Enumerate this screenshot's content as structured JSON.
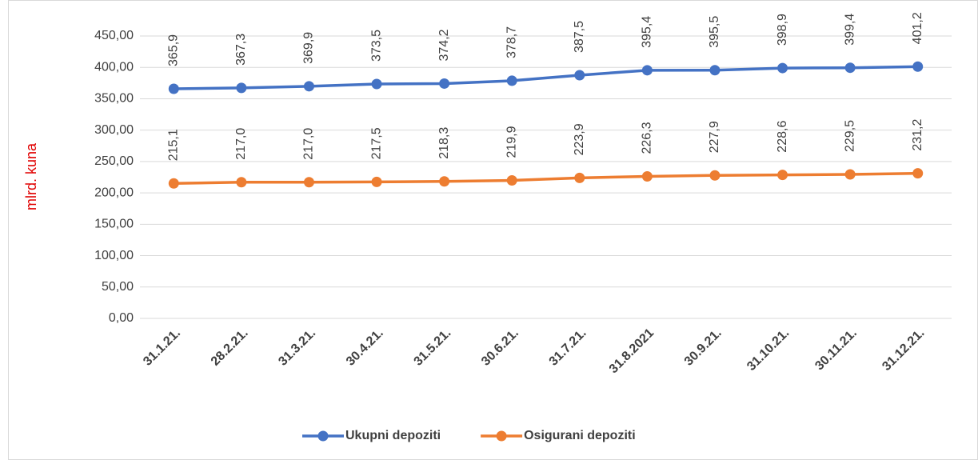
{
  "chart_data": {
    "type": "line",
    "ylabel": "mlrd. kuna",
    "categories": [
      "31.1.21.",
      "28.2.21.",
      "31.3.21.",
      "30.4.21.",
      "31.5.21.",
      "30.6.21.",
      "31.7.21.",
      "31.8.2021",
      "30.9.21.",
      "31.10.21.",
      "30.11.21.",
      "31.12.21."
    ],
    "series": [
      {
        "name": "Ukupni depoziti",
        "color": "#4472c4",
        "values": [
          365.9,
          367.3,
          369.9,
          373.5,
          374.2,
          378.7,
          387.5,
          395.4,
          395.5,
          398.9,
          399.4,
          401.2
        ],
        "value_labels": [
          "365,9",
          "367,3",
          "369,9",
          "373,5",
          "374,2",
          "378,7",
          "387,5",
          "395,4",
          "395,5",
          "398,9",
          "399,4",
          "401,2"
        ]
      },
      {
        "name": "Osigurani depoziti",
        "color": "#ed7d31",
        "values": [
          215.1,
          217.0,
          217.0,
          217.5,
          218.3,
          219.9,
          223.9,
          226.3,
          227.9,
          228.6,
          229.5,
          231.2
        ],
        "value_labels": [
          "215,1",
          "217,0",
          "217,0",
          "217,5",
          "218,3",
          "219,9",
          "223,9",
          "226,3",
          "227,9",
          "228,6",
          "229,5",
          "231,2"
        ]
      }
    ],
    "ylim": [
      0,
      450
    ],
    "yticks": [
      {
        "value": 0,
        "label": "0,00"
      },
      {
        "value": 50,
        "label": "50,00"
      },
      {
        "value": 100,
        "label": "100,00"
      },
      {
        "value": 150,
        "label": "150,00"
      },
      {
        "value": 200,
        "label": "200,00"
      },
      {
        "value": 250,
        "label": "250,00"
      },
      {
        "value": 300,
        "label": "300,00"
      },
      {
        "value": 350,
        "label": "350,00"
      },
      {
        "value": 400,
        "label": "400,00"
      },
      {
        "value": 450,
        "label": "450,00"
      }
    ],
    "grid": true,
    "legend": "bottom"
  }
}
